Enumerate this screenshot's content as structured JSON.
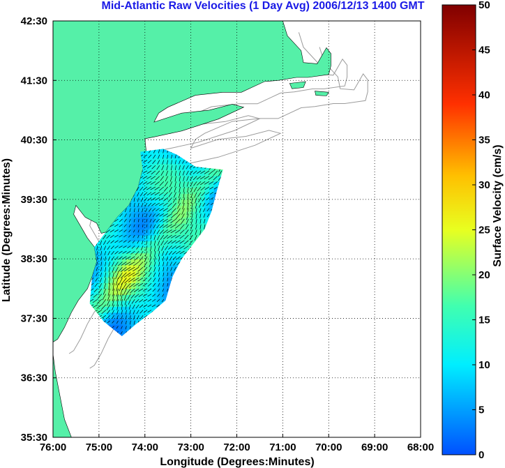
{
  "title": "Mid-Atlantic Raw Velocities (1 Day Avg) 2006/12/13 1400 GMT",
  "colors": {
    "land": "#55f0a8",
    "coast_outline": "#000000",
    "bathymetry": "#9a9a9a",
    "grid": "#000000",
    "title": "#1a1ae6",
    "arrow": "#000000"
  },
  "chart_data": {
    "type": "heatmap",
    "xlabel": "Longitude (Degrees:Minutes)",
    "ylabel": "Latitude (Degrees:Minutes)",
    "xlim": [
      -76.0,
      -68.0
    ],
    "ylim": [
      35.5,
      42.5
    ],
    "x_ticks": [
      {
        "value": -76.0,
        "label": "76:00"
      },
      {
        "value": -75.0,
        "label": "75:00"
      },
      {
        "value": -74.0,
        "label": "74:00"
      },
      {
        "value": -73.0,
        "label": "73:00"
      },
      {
        "value": -72.0,
        "label": "72:00"
      },
      {
        "value": -71.0,
        "label": "71:00"
      },
      {
        "value": -70.0,
        "label": "70:00"
      },
      {
        "value": -69.0,
        "label": "69:00"
      },
      {
        "value": -68.0,
        "label": "68:00"
      }
    ],
    "y_ticks": [
      {
        "value": 35.5,
        "label": "35:30"
      },
      {
        "value": 36.5,
        "label": "36:30"
      },
      {
        "value": 37.5,
        "label": "37:30"
      },
      {
        "value": 38.5,
        "label": "38:30"
      },
      {
        "value": 39.5,
        "label": "39:30"
      },
      {
        "value": 40.5,
        "label": "40:30"
      },
      {
        "value": 41.5,
        "label": "41:30"
      },
      {
        "value": 42.5,
        "label": "42:30"
      }
    ],
    "grid": true,
    "colorbar": {
      "label": "Surface Velocity (cm/s)",
      "range": [
        0,
        50
      ],
      "ticks": [
        {
          "value": 0,
          "label": "0"
        },
        {
          "value": 5,
          "label": "5"
        },
        {
          "value": 10,
          "label": "10"
        },
        {
          "value": 15,
          "label": "15"
        },
        {
          "value": 20,
          "label": "20"
        },
        {
          "value": 25,
          "label": "25"
        },
        {
          "value": 30,
          "label": "30"
        },
        {
          "value": 35,
          "label": "35"
        },
        {
          "value": 40,
          "label": "40"
        },
        {
          "value": 45,
          "label": "45"
        },
        {
          "value": 50,
          "label": "50"
        }
      ]
    },
    "coastline": [
      [
        -76.0,
        42.5
      ],
      [
        -71.0,
        42.5
      ],
      [
        -70.9,
        42.25
      ],
      [
        -70.6,
        42.0
      ],
      [
        -70.55,
        41.8
      ],
      [
        -70.25,
        41.78
      ],
      [
        -70.05,
        42.05
      ],
      [
        -69.95,
        41.95
      ],
      [
        -69.95,
        41.75
      ],
      [
        -70.0,
        41.6
      ],
      [
        -70.45,
        41.55
      ],
      [
        -70.7,
        41.55
      ],
      [
        -71.1,
        41.5
      ],
      [
        -71.4,
        41.48
      ],
      [
        -71.9,
        41.3
      ],
      [
        -72.3,
        41.3
      ],
      [
        -72.9,
        41.25
      ],
      [
        -73.5,
        41.05
      ],
      [
        -73.7,
        40.95
      ],
      [
        -73.8,
        40.8
      ],
      [
        -73.2,
        40.95
      ],
      [
        -72.6,
        41.0
      ],
      [
        -72.1,
        41.1
      ],
      [
        -71.85,
        41.05
      ],
      [
        -72.4,
        40.85
      ],
      [
        -73.2,
        40.65
      ],
      [
        -73.8,
        40.55
      ],
      [
        -74.0,
        40.52
      ],
      [
        -73.97,
        40.3
      ],
      [
        -74.05,
        40.0
      ],
      [
        -74.15,
        39.7
      ],
      [
        -74.35,
        39.4
      ],
      [
        -74.6,
        39.2
      ],
      [
        -74.85,
        38.95
      ],
      [
        -74.95,
        38.93
      ],
      [
        -75.05,
        39.1
      ],
      [
        -75.3,
        39.2
      ],
      [
        -75.5,
        39.4
      ],
      [
        -75.55,
        39.25
      ],
      [
        -75.4,
        39.05
      ],
      [
        -75.25,
        38.85
      ],
      [
        -75.1,
        38.7
      ],
      [
        -75.05,
        38.45
      ],
      [
        -75.15,
        38.2
      ],
      [
        -75.25,
        38.0
      ],
      [
        -75.45,
        37.8
      ],
      [
        -75.6,
        37.6
      ],
      [
        -75.75,
        37.35
      ],
      [
        -75.9,
        37.15
      ],
      [
        -76.0,
        37.1
      ]
    ],
    "extra_land": [
      [
        [
          -76.0,
          36.9
        ],
        [
          -75.95,
          36.6
        ],
        [
          -75.85,
          36.2
        ],
        [
          -75.75,
          35.8
        ],
        [
          -75.6,
          35.5
        ],
        [
          -76.0,
          35.5
        ]
      ],
      [
        [
          -70.85,
          41.45
        ],
        [
          -70.5,
          41.48
        ],
        [
          -70.55,
          41.38
        ],
        [
          -70.8,
          41.36
        ]
      ],
      [
        [
          -70.3,
          41.32
        ],
        [
          -70.0,
          41.3
        ],
        [
          -70.05,
          41.24
        ],
        [
          -70.28,
          41.25
        ]
      ]
    ],
    "velocity_field": {
      "domain": [
        [
          -74.1,
          40.3
        ],
        [
          -73.6,
          40.35
        ],
        [
          -73.3,
          40.25
        ],
        [
          -72.9,
          40.05
        ],
        [
          -72.3,
          40.0
        ],
        [
          -72.45,
          39.6
        ],
        [
          -72.55,
          39.3
        ],
        [
          -72.7,
          39.0
        ],
        [
          -73.0,
          38.7
        ],
        [
          -73.2,
          38.5
        ],
        [
          -73.4,
          38.2
        ],
        [
          -73.55,
          37.8
        ],
        [
          -73.85,
          37.6
        ],
        [
          -74.2,
          37.4
        ],
        [
          -74.5,
          37.2
        ],
        [
          -74.9,
          37.45
        ],
        [
          -75.2,
          37.75
        ],
        [
          -75.15,
          38.2
        ],
        [
          -75.05,
          38.45
        ],
        [
          -75.1,
          38.7
        ],
        [
          -74.9,
          38.9
        ],
        [
          -74.6,
          39.2
        ],
        [
          -74.35,
          39.4
        ],
        [
          -74.15,
          39.7
        ],
        [
          -74.05,
          40.0
        ]
      ],
      "mean_direction_deg": 215,
      "typical_speed_cm_s": [
        6,
        22
      ]
    }
  }
}
